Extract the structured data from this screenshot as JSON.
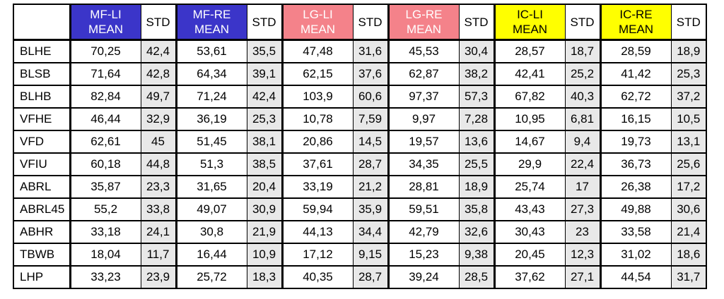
{
  "colors": {
    "MF": {
      "bg": "#3B35C9",
      "fg": "#FFFFFF"
    },
    "LG": {
      "bg": "#F4828A",
      "fg": "#FFFFFF"
    },
    "IC": {
      "bg": "#FFFF00",
      "fg": "#000000"
    },
    "std_data_cell_bg": "#E8E8E8",
    "border": "#000000",
    "background": "#FFFFFF"
  },
  "chart_data": {
    "type": "table",
    "title": "",
    "decimal_separator": ",",
    "column_groups": [
      "MF-LI",
      "MF-RE",
      "LG-LI",
      "LG-RE",
      "IC-LI",
      "IC-RE"
    ],
    "header_cells": [
      {
        "label": "",
        "group": ""
      },
      {
        "label": "MF-LI\nMEAN",
        "group": "MF"
      },
      {
        "label": "STD",
        "group": ""
      },
      {
        "label": "MF-RE\nMEAN",
        "group": "MF"
      },
      {
        "label": "STD",
        "group": ""
      },
      {
        "label": "LG-LI\nMEAN",
        "group": "LG"
      },
      {
        "label": "STD",
        "group": ""
      },
      {
        "label": "LG-RE\nMEAN",
        "group": "LG"
      },
      {
        "label": "STD",
        "group": ""
      },
      {
        "label": "IC-LI\nMEAN",
        "group": "IC"
      },
      {
        "label": "STD",
        "group": ""
      },
      {
        "label": "IC-RE\nMEAN",
        "group": "IC"
      },
      {
        "label": "STD",
        "group": ""
      }
    ],
    "rows": [
      {
        "label": "BLHE",
        "values": [
          "70,25",
          "42,4",
          "53,61",
          "35,5",
          "47,48",
          "31,6",
          "45,53",
          "30,4",
          "28,57",
          "18,7",
          "28,59",
          "18,9"
        ]
      },
      {
        "label": "BLSB",
        "values": [
          "71,64",
          "42,8",
          "64,34",
          "39,1",
          "62,15",
          "37,6",
          "62,87",
          "38,2",
          "42,41",
          "25,2",
          "41,42",
          "25,3"
        ]
      },
      {
        "label": "BLHB",
        "values": [
          "82,84",
          "49,7",
          "71,24",
          "42,4",
          "103,9",
          "60,6",
          "97,37",
          "57,3",
          "67,82",
          "40,3",
          "62,72",
          "37,2"
        ]
      },
      {
        "label": "VFHE",
        "values": [
          "46,44",
          "32,9",
          "36,19",
          "25,3",
          "10,78",
          "7,59",
          "9,97",
          "7,28",
          "10,95",
          "6,81",
          "16,15",
          "10,5"
        ]
      },
      {
        "label": "VFD",
        "values": [
          "62,61",
          "45",
          "51,45",
          "38,1",
          "20,86",
          "14,5",
          "19,57",
          "13,6",
          "14,67",
          "9,4",
          "19,73",
          "13,1"
        ]
      },
      {
        "label": "VFIU",
        "values": [
          "60,18",
          "44,8",
          "51,3",
          "38,5",
          "37,61",
          "28,7",
          "34,35",
          "25,5",
          "29,9",
          "22,4",
          "36,73",
          "25,6"
        ]
      },
      {
        "label": "ABRL",
        "values": [
          "35,87",
          "23,3",
          "31,65",
          "20,4",
          "33,19",
          "21,2",
          "28,81",
          "18,9",
          "25,74",
          "17",
          "26,38",
          "17,2"
        ]
      },
      {
        "label": "ABRL45",
        "values": [
          "55,2",
          "33,8",
          "49,07",
          "30,9",
          "59,94",
          "35,9",
          "59,51",
          "35,8",
          "43,43",
          "27,3",
          "49,88",
          "30,6"
        ]
      },
      {
        "label": "ABHR",
        "values": [
          "33,18",
          "24,1",
          "30,8",
          "21,9",
          "44,13",
          "34,4",
          "42,79",
          "32,6",
          "30,43",
          "23",
          "33,58",
          "21,4"
        ]
      },
      {
        "label": "TBWB",
        "values": [
          "18,04",
          "11,7",
          "16,44",
          "10,9",
          "17,12",
          "9,15",
          "15,23",
          "9,38",
          "20,45",
          "12,3",
          "31,02",
          "18,6"
        ]
      },
      {
        "label": "LHP",
        "values": [
          "33,23",
          "23,9",
          "25,72",
          "18,3",
          "40,35",
          "28,7",
          "39,24",
          "28,5",
          "37,62",
          "27,1",
          "44,54",
          "31,7"
        ]
      }
    ]
  }
}
